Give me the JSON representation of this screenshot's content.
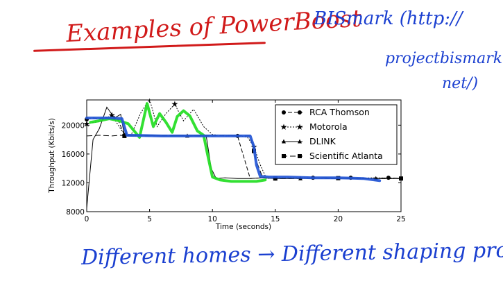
{
  "annotations": {
    "title_note": "Examples of PowerBoost",
    "side_note_line1": "BISmark (http://",
    "side_note_line2": "projectbismark.",
    "side_note_line3": "net/)",
    "bottom_note": "Different homes → Different shaping profiles!"
  },
  "colors": {
    "title_note": "#d11a1a",
    "notes": "#1a3fd0",
    "highlight_green": "#22dd22",
    "highlight_blue": "#2356d6"
  },
  "chart_data": {
    "type": "line",
    "title": "",
    "xlabel": "Time (seconds)",
    "ylabel": "Throughput (Kbits/s)",
    "xlim": [
      0,
      25
    ],
    "ylim": [
      8000,
      23500
    ],
    "xticks": [
      0,
      5,
      10,
      15,
      20,
      25
    ],
    "yticks": [
      8000,
      12000,
      16000,
      20000
    ],
    "grid": false,
    "legend_position": "top-right",
    "series": [
      {
        "name": "RCA Thomson",
        "marker": "circle",
        "dash": "6,3",
        "x": [
          0,
          0.5,
          1,
          1.5,
          2,
          2.5,
          3,
          4,
          5,
          6,
          7,
          8,
          9,
          12,
          13,
          14,
          15,
          16,
          17,
          18,
          19,
          20,
          21,
          22,
          23,
          24,
          25
        ],
        "y": [
          20800,
          21000,
          20900,
          21100,
          20800,
          20700,
          18600,
          18500,
          18600,
          18500,
          18600,
          18500,
          18600,
          18500,
          12600,
          12700,
          12600,
          12700,
          12600,
          12700,
          12600,
          12600,
          12700,
          12600,
          12600,
          12700,
          12600
        ],
        "marker_x": [
          0,
          3,
          12,
          15,
          18,
          21,
          24
        ]
      },
      {
        "name": "Motorola",
        "marker": "star",
        "dash": "2,2",
        "x": [
          0,
          1,
          2,
          2.8,
          3.5,
          4.3,
          5,
          5.6,
          6.3,
          7,
          7.7,
          8.5,
          9.3,
          10,
          11,
          12,
          12.8,
          13.3,
          13.8,
          14.3,
          15,
          17,
          20,
          23,
          25
        ],
        "y": [
          20200,
          20500,
          21400,
          19200,
          18500,
          21700,
          23600,
          19800,
          21600,
          22900,
          20600,
          22200,
          19800,
          18700,
          18500,
          18600,
          18300,
          17000,
          14500,
          12600,
          12700,
          12700,
          12600,
          12700,
          12600
        ],
        "marker_x": [
          0,
          2,
          7,
          13.3
        ]
      },
      {
        "name": "DLINK",
        "marker": "triangle",
        "dash": "none",
        "x": [
          0,
          0.5,
          1,
          1.6,
          2.2,
          2.7,
          3,
          4,
          6,
          8,
          9.5,
          9.9,
          10.3,
          11,
          12,
          13,
          14,
          15,
          17,
          19,
          21,
          23,
          25
        ],
        "y": [
          8500,
          18000,
          19500,
          22500,
          21000,
          21500,
          18500,
          18600,
          18500,
          18500,
          18600,
          14000,
          12600,
          12700,
          12600,
          12600,
          12700,
          12600,
          12600,
          12700,
          12600,
          12600,
          12600
        ],
        "marker_x": [
          2.2,
          8,
          17,
          23
        ]
      },
      {
        "name": "Scientific Atlanta",
        "marker": "square",
        "dash": "8,4",
        "x": [
          0,
          1,
          2,
          2.7,
          3,
          5,
          7,
          9,
          10,
          11,
          12,
          13,
          13.5,
          14,
          15,
          17,
          19,
          21,
          23,
          25
        ],
        "y": [
          18500,
          18600,
          18500,
          18600,
          18500,
          18500,
          18600,
          18500,
          18500,
          18600,
          18500,
          18500,
          15000,
          12700,
          12600,
          12600,
          12700,
          12600,
          12600,
          12600
        ],
        "marker_x": [
          3,
          13.3,
          15,
          20,
          25
        ]
      }
    ],
    "highlights": [
      {
        "color": "green",
        "x": [
          0.3,
          1,
          1.8,
          2.6,
          3.3,
          4.2,
          4.8,
          5.3,
          5.8,
          6.3,
          6.8,
          7.2,
          7.7,
          8.2,
          8.8,
          9.3,
          9.6,
          10,
          10.6,
          11.5,
          12.5,
          13.5,
          14.2
        ],
        "y": [
          20400,
          20600,
          20900,
          20600,
          20200,
          18300,
          23000,
          19800,
          21600,
          20400,
          19000,
          21200,
          22000,
          21300,
          19200,
          18600,
          16000,
          12800,
          12400,
          12200,
          12200,
          12200,
          12400
        ]
      },
      {
        "color": "blue",
        "x": [
          0,
          1,
          2,
          2.8,
          3.2,
          6,
          10,
          13,
          13.3,
          13.5,
          13.8,
          14.5,
          16,
          18,
          20,
          22,
          23.3
        ],
        "y": [
          21000,
          21000,
          21000,
          20900,
          18600,
          18500,
          18500,
          18500,
          17000,
          14500,
          12900,
          12800,
          12800,
          12700,
          12700,
          12600,
          12300
        ]
      }
    ]
  }
}
